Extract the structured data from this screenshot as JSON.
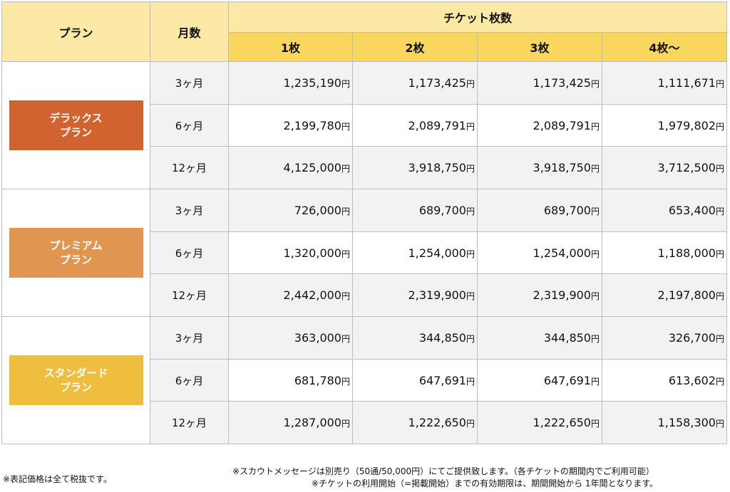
{
  "header": {
    "plan_label": "プラン",
    "months_label": "月数",
    "tickets_label": "チケット枚数",
    "ticket_columns": [
      "1枚",
      "2枚",
      "3枚",
      "4枚～"
    ]
  },
  "yen_unit": "円",
  "colors": {
    "header_light": "#fce9a5",
    "header_accent": "#f9d75e",
    "deluxe": "#d0632f",
    "premium": "#e09650",
    "standard": "#f0be3e"
  },
  "plans": [
    {
      "name_line1": "デラックス",
      "name_line2": "プラン",
      "color": "#d0632f",
      "rows": [
        {
          "months": "3ヶ月",
          "prices": [
            "1,235,190",
            "1,173,425",
            "1,173,425",
            "1,111,671"
          ]
        },
        {
          "months": "6ヶ月",
          "prices": [
            "2,199,780",
            "2,089,791",
            "2,089,791",
            "1,979,802"
          ]
        },
        {
          "months": "12ヶ月",
          "prices": [
            "4,125,000",
            "3,918,750",
            "3,918,750",
            "3,712,500"
          ]
        }
      ]
    },
    {
      "name_line1": "プレミアム",
      "name_line2": "プラン",
      "color": "#e09650",
      "rows": [
        {
          "months": "3ヶ月",
          "prices": [
            "726,000",
            "689,700",
            "689,700",
            "653,400"
          ]
        },
        {
          "months": "6ヶ月",
          "prices": [
            "1,320,000",
            "1,254,000",
            "1,254,000",
            "1,188,000"
          ]
        },
        {
          "months": "12ヶ月",
          "prices": [
            "2,442,000",
            "2,319,900",
            "2,319,900",
            "2,197,800"
          ]
        }
      ]
    },
    {
      "name_line1": "スタンダード",
      "name_line2": "プラン",
      "color": "#f0be3e",
      "rows": [
        {
          "months": "3ヶ月",
          "prices": [
            "363,000",
            "344,850",
            "344,850",
            "326,700"
          ]
        },
        {
          "months": "6ヶ月",
          "prices": [
            "681,780",
            "647,691",
            "647,691",
            "613,602"
          ]
        },
        {
          "months": "12ヶ月",
          "prices": [
            "1,287,000",
            "1,222,650",
            "1,222,650",
            "1,158,300"
          ]
        }
      ]
    }
  ],
  "notes": {
    "tax": "※表記価格は全て税抜です。",
    "scout": "※スカウトメッセージは別売り（50通/50,000円）にてご提供致します。（各チケットの期間内でご利用可能）",
    "validity": "※チケットの利用開始（=掲載開始）までの有効期限は、期間開始から 1年間となります。"
  }
}
